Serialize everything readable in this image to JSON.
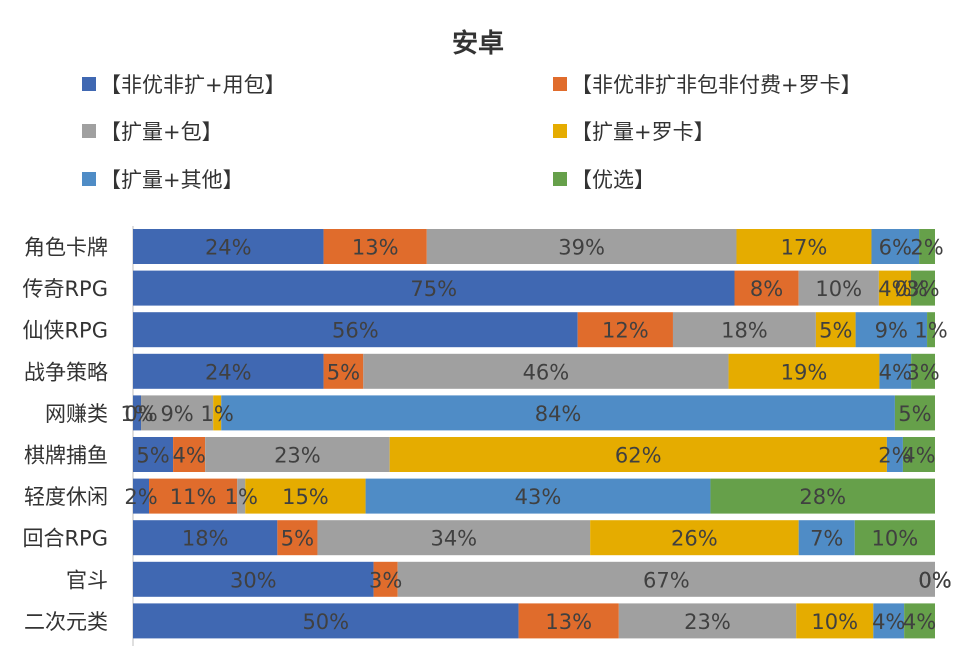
{
  "chart_data": {
    "type": "bar",
    "orientation": "horizontal",
    "stacked": "percent",
    "title": "安卓",
    "xlabel": "",
    "ylabel": "",
    "xlim": [
      0,
      100
    ],
    "grid": false,
    "legend_position": "top",
    "categories": [
      "角色卡牌",
      "传奇RPG",
      "仙侠RPG",
      "战争策略",
      "网赚类",
      "棋牌捕鱼",
      "轻度休闲",
      "回合RPG",
      "官斗",
      "二次元类"
    ],
    "series": [
      {
        "name": "【非优非扩+用包】",
        "color": "#4068B2",
        "values": [
          24,
          75,
          56,
          24,
          1,
          5,
          2,
          18,
          30,
          50
        ]
      },
      {
        "name": "【非优非扩非包非付费+罗卡】",
        "color": "#E06C2C",
        "values": [
          13,
          8,
          12,
          5,
          0,
          4,
          11,
          5,
          3,
          13
        ]
      },
      {
        "name": "【扩量+包】",
        "color": "#A0A0A0",
        "values": [
          39,
          10,
          18,
          46,
          9,
          23,
          1,
          34,
          67,
          23
        ]
      },
      {
        "name": "【扩量+罗卡】",
        "color": "#E5AC00",
        "values": [
          17,
          4,
          5,
          19,
          1,
          62,
          15,
          26,
          0,
          10
        ]
      },
      {
        "name": "【扩量+其他】",
        "color": "#4F8CC6",
        "values": [
          6,
          0,
          9,
          4,
          84,
          2,
          43,
          7,
          0,
          4
        ]
      },
      {
        "name": "【优选】",
        "color": "#66A04A",
        "values": [
          2,
          3,
          1,
          3,
          5,
          4,
          28,
          10,
          0,
          4
        ]
      }
    ]
  }
}
